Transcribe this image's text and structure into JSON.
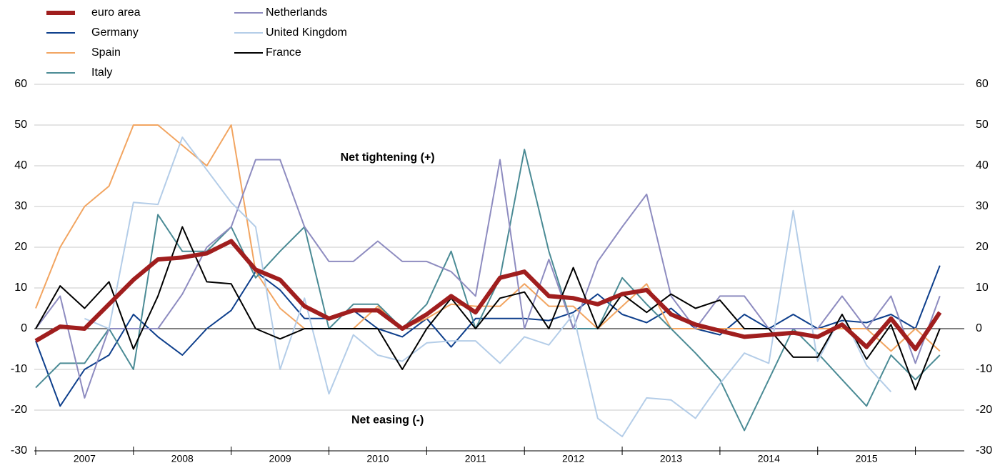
{
  "chart_data": {
    "type": "line",
    "annotations": [
      {
        "text": "Net tightening (+)",
        "x": 2010.6,
        "y": 42
      },
      {
        "text": "Net easing (-)",
        "x": 2010.6,
        "y": -22.5
      }
    ],
    "x": [
      2007,
      2007.25,
      2007.5,
      2007.75,
      2008,
      2008.25,
      2008.5,
      2008.75,
      2009,
      2009.25,
      2009.5,
      2009.75,
      2010,
      2010.25,
      2010.5,
      2010.75,
      2011,
      2011.25,
      2011.5,
      2011.75,
      2012,
      2012.25,
      2012.5,
      2012.75,
      2013,
      2013.25,
      2013.5,
      2013.75,
      2014,
      2014.25,
      2014.5,
      2014.75,
      2015,
      2015.25,
      2015.5,
      2015.75,
      2016,
      2016.25
    ],
    "xlim": [
      2007,
      2016.5
    ],
    "xticks": [
      {
        "value": 2007.5,
        "label": "2007"
      },
      {
        "value": 2008.5,
        "label": "2008"
      },
      {
        "value": 2009.5,
        "label": "2009"
      },
      {
        "value": 2010.5,
        "label": "2010"
      },
      {
        "value": 2011.5,
        "label": "2011"
      },
      {
        "value": 2012.5,
        "label": "2012"
      },
      {
        "value": 2013.5,
        "label": "2013"
      },
      {
        "value": 2014.5,
        "label": "2014"
      },
      {
        "value": 2015.5,
        "label": "2015"
      }
    ],
    "ylim": [
      -30,
      60
    ],
    "yticks": [
      -30,
      -20,
      -10,
      0,
      10,
      20,
      30,
      40,
      50,
      60
    ],
    "y2lim": [
      -30,
      60
    ],
    "y2ticks": [
      -30,
      -20,
      -10,
      0,
      10,
      20,
      30,
      40,
      50,
      60
    ],
    "grid": true,
    "legend": "top-left",
    "series": [
      {
        "name": "euro area",
        "color": "#a01e1e",
        "width": 6,
        "values": [
          -3,
          0.5,
          0,
          6,
          12,
          17,
          17.5,
          18.5,
          21.5,
          14.5,
          12,
          5.5,
          2.5,
          4.5,
          4.5,
          0,
          3.5,
          8,
          4,
          12.5,
          14,
          8,
          7.5,
          6,
          8.5,
          9.5,
          3.5,
          1,
          -0.5,
          -2,
          -1.5,
          -1,
          -2,
          1,
          -4.5,
          2.5,
          -5,
          4
        ]
      },
      {
        "name": "Germany",
        "color": "#0e3f8c",
        "width": 2,
        "values": [
          -3,
          -19,
          -10,
          -6.5,
          3.5,
          -2,
          -6.5,
          0,
          4.5,
          14,
          9.5,
          2.5,
          2.5,
          4.5,
          0,
          -2,
          2.5,
          -4.5,
          2.5,
          2.5,
          2.5,
          2,
          4,
          8.5,
          3.5,
          1.5,
          5,
          0,
          -1.5,
          3.5,
          0,
          3.5,
          0,
          2,
          1.5,
          3.5,
          0,
          15.5
        ]
      },
      {
        "name": "Spain",
        "color": "#f2a561",
        "width": 2,
        "values": [
          5,
          20,
          30,
          35,
          50,
          50,
          45,
          40,
          50,
          14,
          5,
          0,
          0,
          0,
          5.5,
          0,
          2.5,
          6,
          5.5,
          5.5,
          11,
          5.5,
          5.5,
          0,
          5.5,
          11,
          0,
          0,
          0,
          0,
          0,
          0,
          0,
          0,
          0,
          -5.5,
          0,
          -5.5
        ]
      },
      {
        "name": "Italy",
        "color": "#4b8b95",
        "width": 2,
        "values": [
          -14.5,
          -8.5,
          -8.5,
          0,
          -10,
          28,
          19,
          19,
          25,
          12.5,
          19,
          25,
          0,
          6,
          6,
          0,
          6,
          19,
          0,
          12.5,
          44,
          19,
          0,
          0,
          12.5,
          6,
          0,
          -6,
          -12.5,
          -25,
          -12.5,
          0,
          -6,
          -12.5,
          -19,
          -6.5,
          -12.5,
          -6.5
        ]
      },
      {
        "name": "Netherlands",
        "color": "#8e8cc0",
        "width": 2,
        "values": [
          0,
          8,
          -17,
          0,
          0,
          0,
          8.5,
          20,
          25,
          41.5,
          41.5,
          25,
          16.5,
          16.5,
          21.5,
          16.5,
          16.5,
          14,
          8,
          41.5,
          0,
          17,
          0,
          16.5,
          25,
          33,
          8,
          0,
          8,
          8,
          0,
          0,
          0,
          8,
          0,
          8,
          -8.5,
          8
        ]
      },
      {
        "name": "United Kingdom",
        "color": "#b4cde8",
        "width": 2,
        "values": [
          null,
          null,
          2.5,
          0,
          31,
          30.5,
          47,
          39,
          31,
          25,
          -10,
          7.5,
          -16,
          -1.5,
          -6.5,
          -8,
          -3.5,
          -3,
          -3,
          -8.5,
          -2,
          -4,
          3.5,
          -22,
          -26.5,
          -17,
          -17.5,
          -22,
          -13.5,
          -6,
          -8.5,
          29,
          -8,
          3.5,
          -9,
          -15.5,
          null,
          null
        ]
      },
      {
        "name": "France",
        "color": "#000000",
        "width": 2,
        "values": [
          0,
          10.5,
          5,
          11.5,
          -5,
          8,
          25,
          11.5,
          11,
          0,
          -2.5,
          0,
          0,
          0,
          0,
          -10,
          0,
          7.5,
          0,
          7.5,
          9,
          0,
          15,
          0,
          8.5,
          4,
          8.5,
          5,
          7,
          0,
          0,
          -7,
          -7,
          3.5,
          -7.5,
          1,
          -15,
          0
        ]
      }
    ]
  }
}
